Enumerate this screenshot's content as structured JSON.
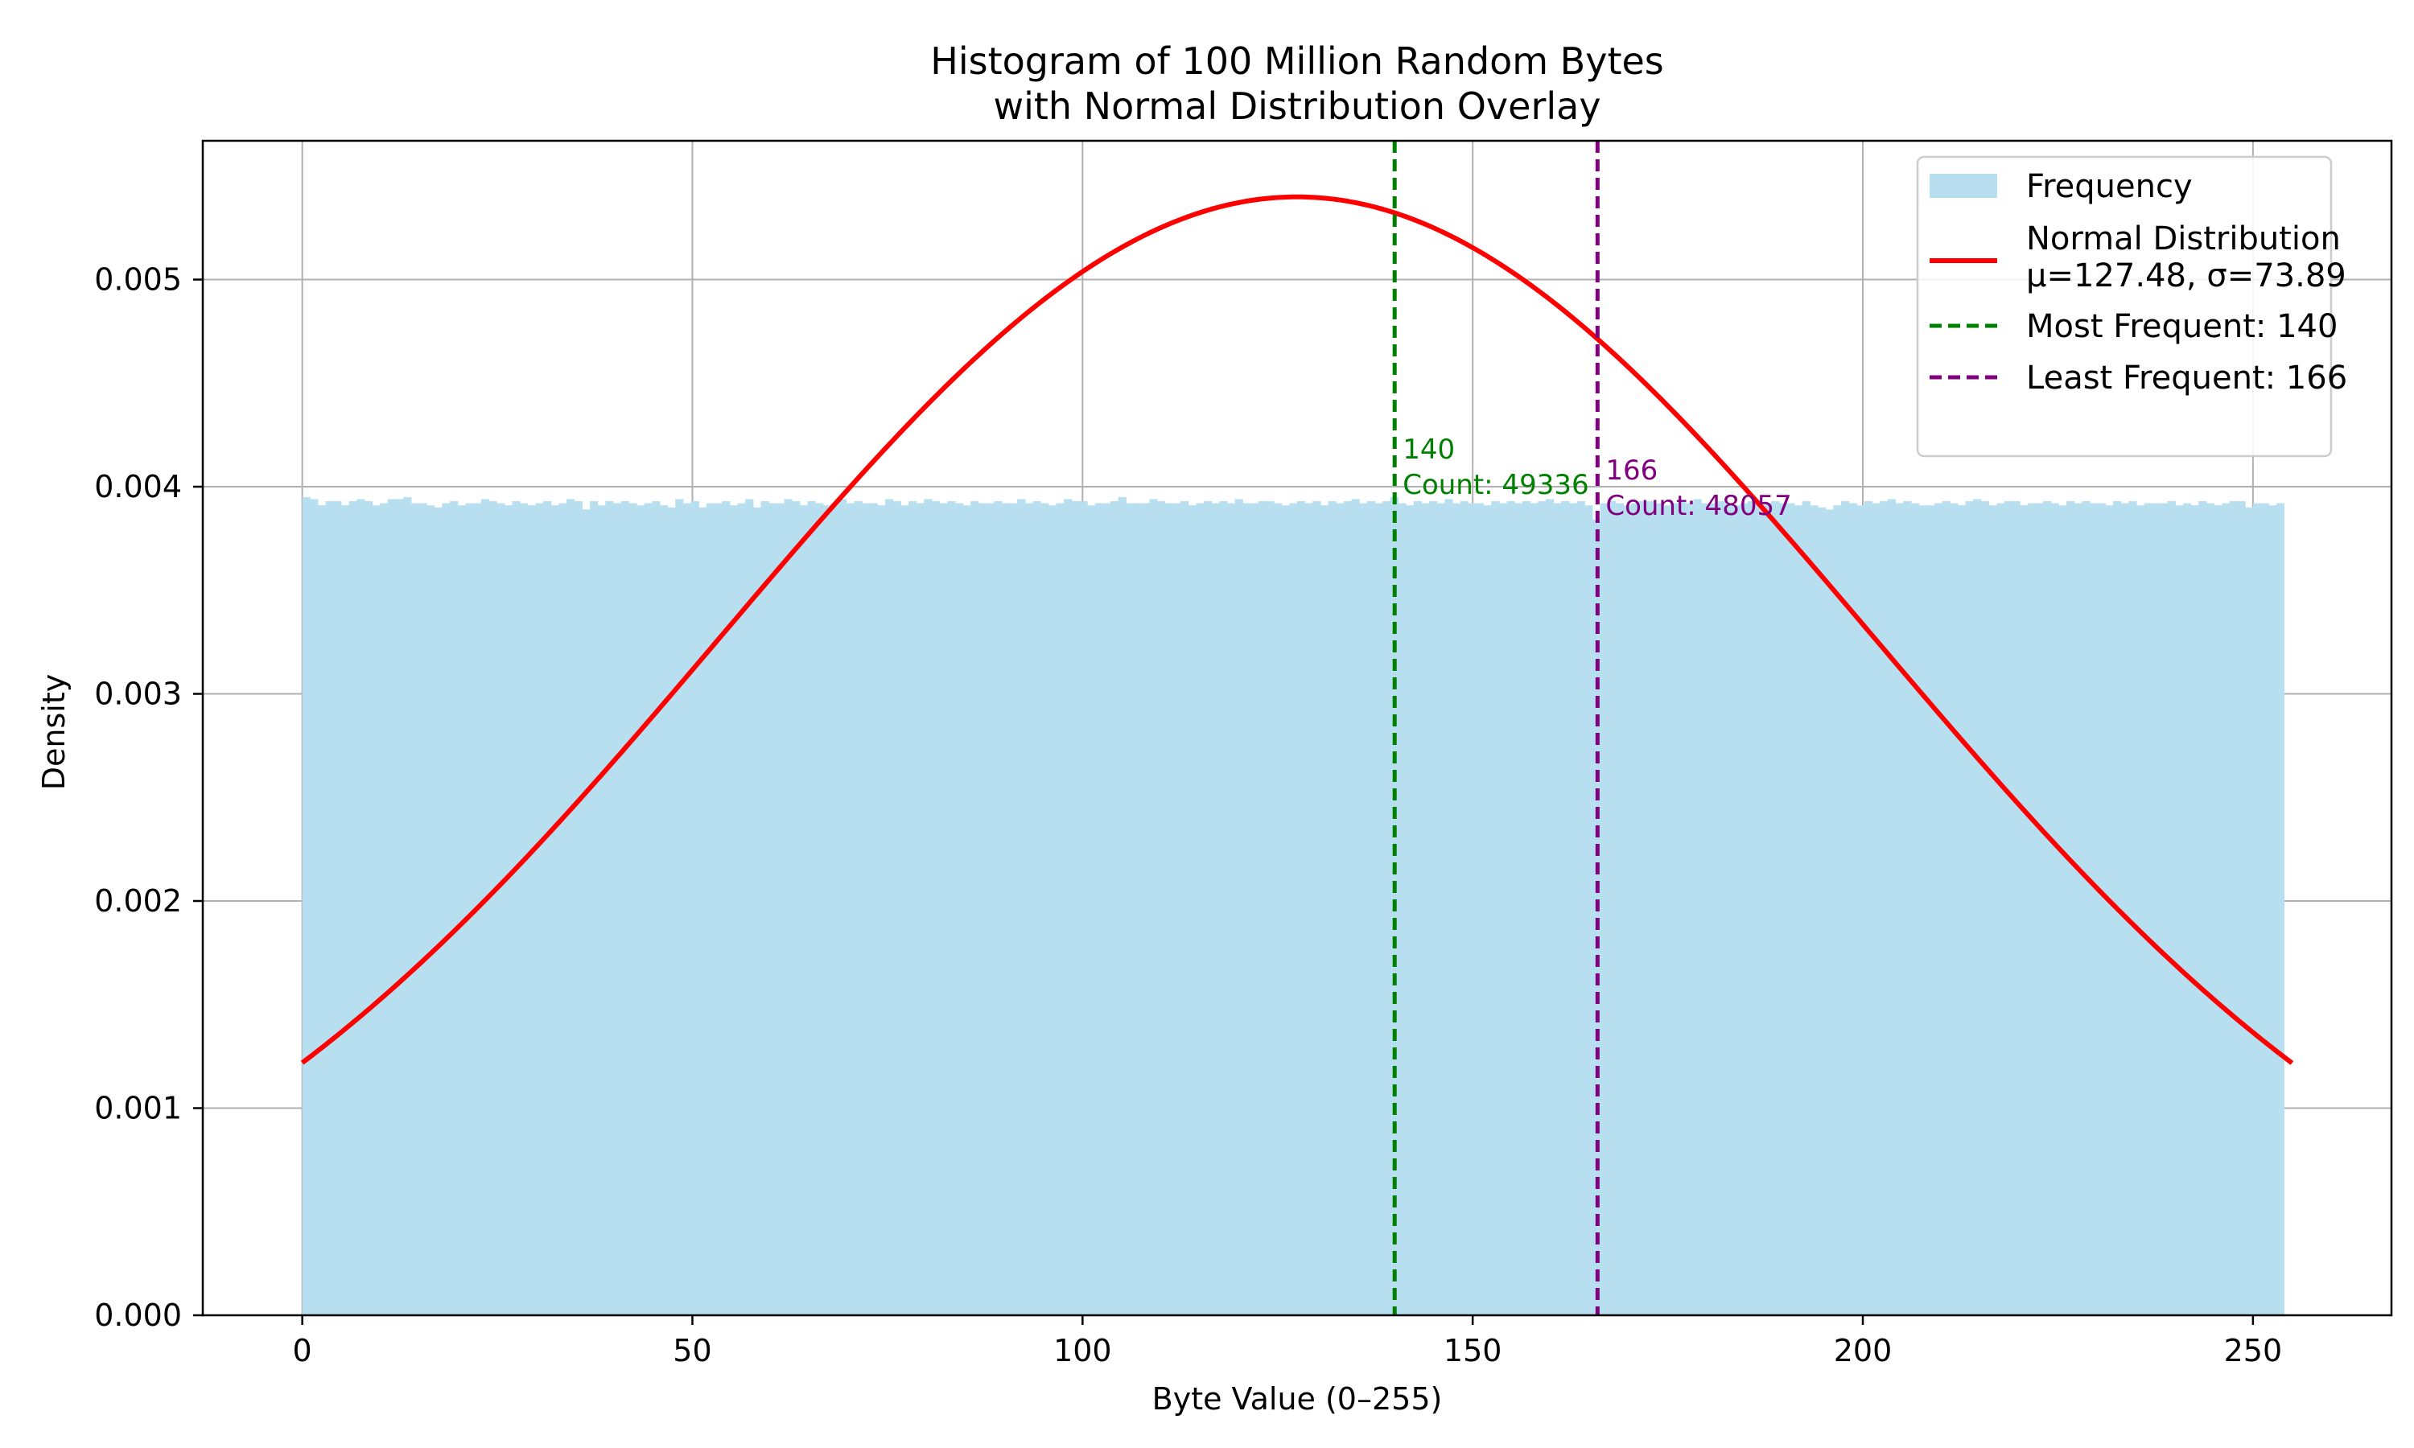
{
  "chart_data": {
    "type": "bar",
    "title": "Histogram of 100 Million Random Bytes",
    "subtitle": "with Normal Distribution Overlay",
    "xlabel": "Byte Value (0–255)",
    "ylabel": "Density",
    "xlim": [
      -12.75,
      267.75
    ],
    "ylim": [
      0,
      0.00567
    ],
    "xticks": [
      0,
      50,
      100,
      150,
      200,
      250
    ],
    "xtick_labels": [
      "0",
      "50",
      "100",
      "150",
      "200",
      "250"
    ],
    "yticks": [
      0,
      0.001,
      0.002,
      0.003,
      0.004,
      0.005
    ],
    "ytick_labels": [
      "0.000",
      "0.001",
      "0.002",
      "0.003",
      "0.004",
      "0.005"
    ],
    "grid": true,
    "legend_position": "top-right",
    "bar_color": "#b7dff0",
    "histogram": {
      "name": "Frequency",
      "bin_start": 0,
      "bin_width": 0.996,
      "density_approx": 0.00392,
      "values": [
        0.00395,
        0.00394,
        0.00391,
        0.00393,
        0.00393,
        0.00391,
        0.00393,
        0.00394,
        0.00393,
        0.00391,
        0.00392,
        0.00394,
        0.00394,
        0.00395,
        0.00392,
        0.00392,
        0.00391,
        0.0039,
        0.00392,
        0.00393,
        0.00391,
        0.00392,
        0.00392,
        0.00394,
        0.00393,
        0.00392,
        0.00391,
        0.00393,
        0.00392,
        0.00391,
        0.00392,
        0.00393,
        0.00391,
        0.00392,
        0.00394,
        0.00393,
        0.00389,
        0.00393,
        0.00391,
        0.00393,
        0.00392,
        0.00393,
        0.00392,
        0.00391,
        0.00392,
        0.00393,
        0.00391,
        0.0039,
        0.00394,
        0.00392,
        0.00393,
        0.0039,
        0.00392,
        0.00392,
        0.00393,
        0.00391,
        0.00392,
        0.00394,
        0.0039,
        0.00393,
        0.00392,
        0.00392,
        0.00394,
        0.00393,
        0.00391,
        0.00393,
        0.00392,
        0.00391,
        0.00392,
        0.00394,
        0.00392,
        0.00393,
        0.00392,
        0.00392,
        0.00391,
        0.00394,
        0.00393,
        0.00391,
        0.00393,
        0.00392,
        0.00394,
        0.00393,
        0.00392,
        0.00393,
        0.00392,
        0.00391,
        0.00393,
        0.00392,
        0.00392,
        0.00393,
        0.00392,
        0.00392,
        0.00394,
        0.00392,
        0.00393,
        0.00392,
        0.00391,
        0.00392,
        0.00394,
        0.00393,
        0.00393,
        0.00391,
        0.00392,
        0.00392,
        0.00393,
        0.00395,
        0.00392,
        0.00392,
        0.00392,
        0.00394,
        0.00393,
        0.00392,
        0.00392,
        0.00393,
        0.00391,
        0.00392,
        0.00393,
        0.00392,
        0.00393,
        0.00392,
        0.00394,
        0.00392,
        0.00392,
        0.00393,
        0.00393,
        0.00392,
        0.00391,
        0.00392,
        0.00393,
        0.00392,
        0.00393,
        0.00391,
        0.00393,
        0.00392,
        0.00393,
        0.00394,
        0.00392,
        0.00393,
        0.00392,
        0.00393,
        0.00395,
        0.00392,
        0.00391,
        0.00393,
        0.00392,
        0.00393,
        0.00392,
        0.00394,
        0.00392,
        0.00393,
        0.00392,
        0.00392,
        0.00391,
        0.00393,
        0.00392,
        0.00393,
        0.00392,
        0.00393,
        0.00392,
        0.00393,
        0.00394,
        0.00392,
        0.00393,
        0.00392,
        0.00393,
        0.00391,
        0.00384,
        0.00392,
        0.00393,
        0.00392,
        0.00391,
        0.00392,
        0.00393,
        0.00393,
        0.00392,
        0.00391,
        0.00392,
        0.00393,
        0.00392,
        0.00394,
        0.00392,
        0.00392,
        0.00393,
        0.00392,
        0.00391,
        0.00392,
        0.00393,
        0.00392,
        0.00392,
        0.00393,
        0.00392,
        0.00392,
        0.00391,
        0.00393,
        0.00391,
        0.0039,
        0.00389,
        0.00391,
        0.00393,
        0.00392,
        0.00391,
        0.00393,
        0.00392,
        0.00393,
        0.00394,
        0.00392,
        0.00393,
        0.00392,
        0.00391,
        0.00391,
        0.00392,
        0.00393,
        0.00392,
        0.00391,
        0.00393,
        0.00394,
        0.00393,
        0.00391,
        0.00392,
        0.00393,
        0.00393,
        0.00391,
        0.00392,
        0.00392,
        0.00393,
        0.00392,
        0.00391,
        0.00393,
        0.00392,
        0.00393,
        0.00392,
        0.00392,
        0.00391,
        0.00393,
        0.00392,
        0.00393,
        0.00391,
        0.00392,
        0.00392,
        0.00392,
        0.00393,
        0.00391,
        0.00392,
        0.00391,
        0.00393,
        0.00392,
        0.00391,
        0.00392,
        0.00393,
        0.00393,
        0.0039,
        0.00392,
        0.00392,
        0.00391,
        0.00392
      ]
    },
    "normal_curve": {
      "name": "Normal Distribution",
      "name_line2": "μ=127.48, σ=73.89",
      "mu": 127.48,
      "sigma": 73.89,
      "x_range": [
        0,
        255
      ],
      "color": "#ff0000"
    },
    "most_frequent": {
      "legend": "Most Frequent: 140",
      "value": 140,
      "label_line1": "140",
      "label_line2": "Count: 49336",
      "label_y": 0.00412,
      "color": "#008000"
    },
    "least_frequent": {
      "legend": "Least Frequent: 166",
      "value": 166,
      "label_line1": "166",
      "label_line2": "Count: 48057",
      "label_y": 0.00402,
      "color": "#800080"
    }
  }
}
